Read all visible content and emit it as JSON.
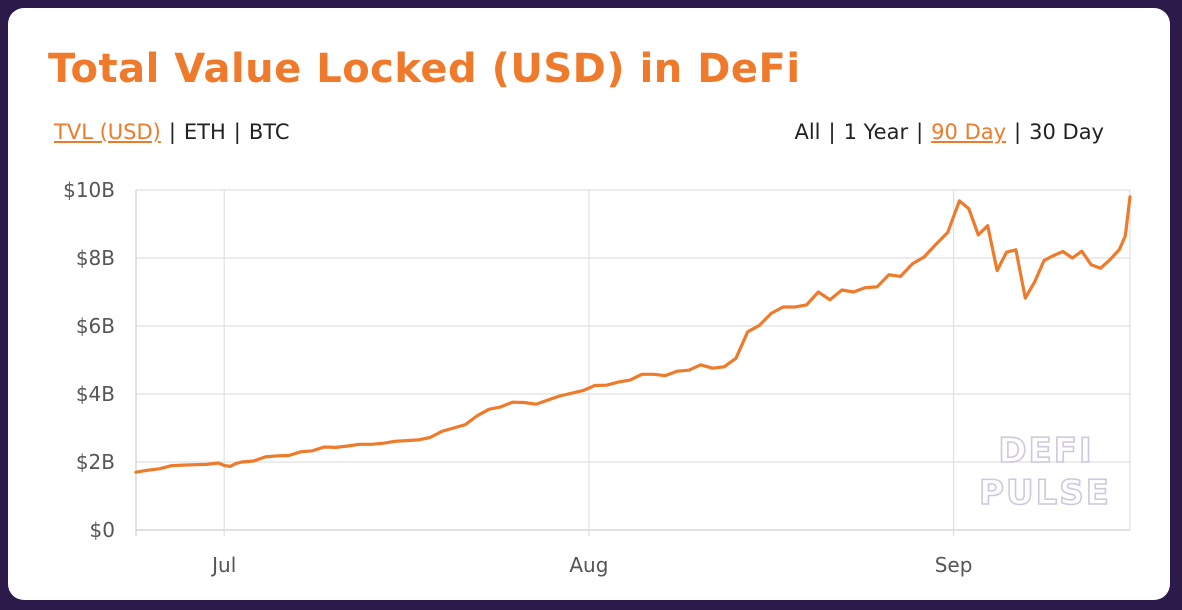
{
  "title": "Total Value Locked (USD) in DeFi",
  "metric_tabs": [
    {
      "label": "TVL (USD)",
      "active": true
    },
    {
      "label": "ETH",
      "active": false
    },
    {
      "label": "BTC",
      "active": false
    }
  ],
  "range_tabs": [
    {
      "label": "All",
      "active": false
    },
    {
      "label": "1 Year",
      "active": false
    },
    {
      "label": "90 Day",
      "active": true
    },
    {
      "label": "30 Day",
      "active": false
    }
  ],
  "separator": "|",
  "watermark": [
    "DEFI",
    "PULSE"
  ],
  "colors": {
    "accent": "#ef7a2b",
    "line": "#ee7b2c",
    "grid": "#e0e0e0",
    "background": "#2b1a4a"
  },
  "chart_data": {
    "type": "line",
    "title": "Total Value Locked (USD) in DeFi",
    "xlabel": "",
    "ylabel": "",
    "x_ticks": [
      "Jul",
      "Aug",
      "Sep"
    ],
    "x_tick_days": [
      0,
      31,
      62
    ],
    "y_ticks": [
      "$0",
      "$2B",
      "$4B",
      "$6B",
      "$8B",
      "$10B"
    ],
    "y_tick_values": [
      0,
      2,
      4,
      6,
      8,
      10
    ],
    "ylim": [
      0,
      10
    ],
    "y_unit": "USD billions",
    "grid": true,
    "legend": "none",
    "series": [
      {
        "values": [
          [
            -7.5,
            1.7
          ],
          [
            -6.5,
            1.76
          ],
          [
            -5.5,
            1.8
          ],
          [
            -4.5,
            1.89
          ],
          [
            -3.5,
            1.91
          ],
          [
            -2.5,
            1.92
          ],
          [
            -1.5,
            1.93
          ],
          [
            -0.5,
            1.97
          ],
          [
            0.0,
            1.9
          ],
          [
            0.5,
            1.87
          ],
          [
            1.0,
            1.96
          ],
          [
            1.5,
            2.0
          ],
          [
            2.5,
            2.03
          ],
          [
            3.5,
            2.15
          ],
          [
            4.5,
            2.18
          ],
          [
            5.5,
            2.19
          ],
          [
            6.5,
            2.3
          ],
          [
            7.5,
            2.33
          ],
          [
            8.5,
            2.44
          ],
          [
            9.5,
            2.43
          ],
          [
            10.5,
            2.47
          ],
          [
            11.5,
            2.52
          ],
          [
            12.5,
            2.52
          ],
          [
            13.5,
            2.55
          ],
          [
            14.5,
            2.61
          ],
          [
            15.5,
            2.63
          ],
          [
            16.5,
            2.65
          ],
          [
            17.5,
            2.72
          ],
          [
            18.5,
            2.9
          ],
          [
            19.5,
            3.0
          ],
          [
            20.5,
            3.1
          ],
          [
            21.5,
            3.36
          ],
          [
            22.5,
            3.55
          ],
          [
            23.5,
            3.62
          ],
          [
            24.5,
            3.76
          ],
          [
            25.5,
            3.75
          ],
          [
            26.5,
            3.7
          ],
          [
            27.5,
            3.82
          ],
          [
            28.5,
            3.94
          ],
          [
            29.5,
            4.02
          ],
          [
            30.5,
            4.1
          ],
          [
            31.5,
            4.25
          ],
          [
            32.5,
            4.26
          ],
          [
            33.5,
            4.35
          ],
          [
            34.5,
            4.41
          ],
          [
            35.5,
            4.58
          ],
          [
            36.5,
            4.58
          ],
          [
            37.5,
            4.54
          ],
          [
            38.5,
            4.67
          ],
          [
            39.5,
            4.7
          ],
          [
            40.5,
            4.86
          ],
          [
            41.5,
            4.76
          ],
          [
            42.5,
            4.8
          ],
          [
            43.5,
            5.05
          ],
          [
            44.5,
            5.83
          ],
          [
            45.5,
            6.02
          ],
          [
            46.5,
            6.37
          ],
          [
            47.5,
            6.56
          ],
          [
            48.5,
            6.56
          ],
          [
            49.5,
            6.62
          ],
          [
            50.5,
            7.0
          ],
          [
            51.5,
            6.77
          ],
          [
            52.5,
            7.06
          ],
          [
            53.5,
            7.0
          ],
          [
            54.5,
            7.13
          ],
          [
            55.5,
            7.15
          ],
          [
            56.5,
            7.51
          ],
          [
            57.5,
            7.46
          ],
          [
            58.5,
            7.83
          ],
          [
            59.5,
            8.03
          ],
          [
            60.5,
            8.4
          ],
          [
            61.5,
            8.75
          ],
          [
            62.5,
            9.68
          ],
          [
            63.3,
            9.45
          ],
          [
            64.1,
            8.68
          ],
          [
            64.9,
            8.95
          ],
          [
            65.7,
            7.63
          ],
          [
            66.5,
            8.17
          ],
          [
            67.3,
            8.24
          ],
          [
            68.1,
            6.82
          ],
          [
            68.9,
            7.3
          ],
          [
            69.7,
            7.93
          ],
          [
            70.5,
            8.07
          ],
          [
            71.3,
            8.19
          ],
          [
            72.1,
            8.0
          ],
          [
            72.9,
            8.2
          ],
          [
            73.7,
            7.8
          ],
          [
            74.5,
            7.7
          ],
          [
            75.3,
            7.95
          ],
          [
            76.1,
            8.25
          ],
          [
            76.6,
            8.65
          ],
          [
            77.0,
            9.8
          ]
        ]
      }
    ]
  }
}
